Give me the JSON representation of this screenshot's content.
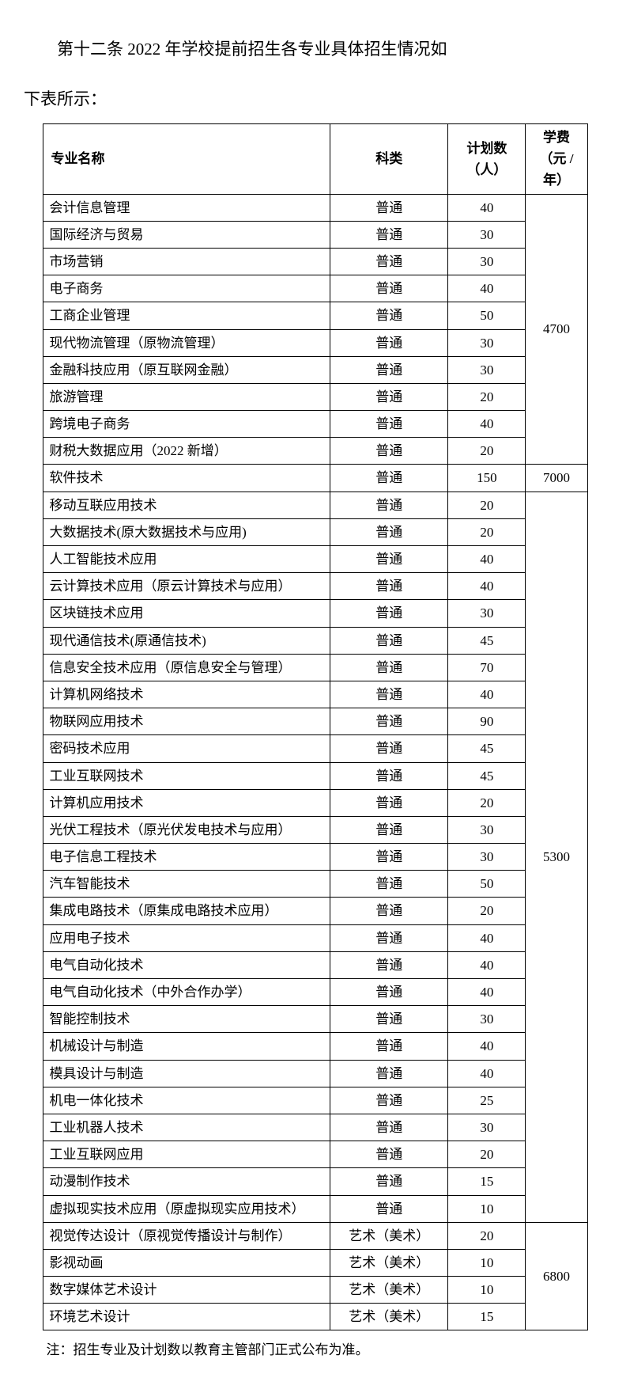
{
  "intro_line1": "第十二条 2022 年学校提前招生各专业具体招生情况如",
  "intro_line2": "下表所示：",
  "table": {
    "headers": {
      "major": "专业名称",
      "category": "科类",
      "plan": "计划数（人）",
      "fee": "学费（元 / 年）"
    },
    "groups": [
      {
        "fee": "4700",
        "rows": [
          {
            "major": "会计信息管理",
            "category": "普通",
            "plan": "40"
          },
          {
            "major": "国际经济与贸易",
            "category": "普通",
            "plan": "30"
          },
          {
            "major": "市场营销",
            "category": "普通",
            "plan": "30"
          },
          {
            "major": "电子商务",
            "category": "普通",
            "plan": "40"
          },
          {
            "major": "工商企业管理",
            "category": "普通",
            "plan": "50"
          },
          {
            "major": "现代物流管理（原物流管理）",
            "category": "普通",
            "plan": "30"
          },
          {
            "major": "金融科技应用（原互联网金融）",
            "category": "普通",
            "plan": "30"
          },
          {
            "major": "旅游管理",
            "category": "普通",
            "plan": "20"
          },
          {
            "major": "跨境电子商务",
            "category": "普通",
            "plan": "40"
          },
          {
            "major": "财税大数据应用（2022 新增）",
            "category": "普通",
            "plan": "20"
          }
        ]
      },
      {
        "fee": "7000",
        "rows": [
          {
            "major": "软件技术",
            "category": "普通",
            "plan": "150"
          }
        ]
      },
      {
        "fee": "5300",
        "rows": [
          {
            "major": "移动互联应用技术",
            "category": "普通",
            "plan": "20"
          },
          {
            "major": "大数据技术(原大数据技术与应用)",
            "category": "普通",
            "plan": "20"
          },
          {
            "major": "人工智能技术应用",
            "category": "普通",
            "plan": "40"
          },
          {
            "major": "云计算技术应用（原云计算技术与应用）",
            "category": "普通",
            "plan": "40"
          },
          {
            "major": "区块链技术应用",
            "category": "普通",
            "plan": "30"
          },
          {
            "major": "现代通信技术(原通信技术)",
            "category": "普通",
            "plan": "45"
          },
          {
            "major": "信息安全技术应用（原信息安全与管理）",
            "category": "普通",
            "plan": "70"
          },
          {
            "major": "计算机网络技术",
            "category": "普通",
            "plan": "40"
          },
          {
            "major": "物联网应用技术",
            "category": "普通",
            "plan": "90"
          },
          {
            "major": "密码技术应用",
            "category": "普通",
            "plan": "45"
          },
          {
            "major": "工业互联网技术",
            "category": "普通",
            "plan": "45"
          },
          {
            "major": "计算机应用技术",
            "category": "普通",
            "plan": "20"
          },
          {
            "major": "光伏工程技术（原光伏发电技术与应用）",
            "category": "普通",
            "plan": "30"
          },
          {
            "major": "电子信息工程技术",
            "category": "普通",
            "plan": "30"
          },
          {
            "major": "汽车智能技术",
            "category": "普通",
            "plan": "50"
          },
          {
            "major": "集成电路技术（原集成电路技术应用）",
            "category": "普通",
            "plan": "20"
          },
          {
            "major": "应用电子技术",
            "category": "普通",
            "plan": "40"
          },
          {
            "major": "电气自动化技术",
            "category": "普通",
            "plan": "40"
          },
          {
            "major": "电气自动化技术（中外合作办学）",
            "category": "普通",
            "plan": "40"
          },
          {
            "major": "智能控制技术",
            "category": "普通",
            "plan": "30"
          },
          {
            "major": "机械设计与制造",
            "category": "普通",
            "plan": "40"
          },
          {
            "major": "模具设计与制造",
            "category": "普通",
            "plan": "40"
          },
          {
            "major": "机电一体化技术",
            "category": "普通",
            "plan": "25"
          },
          {
            "major": "工业机器人技术",
            "category": "普通",
            "plan": "30"
          },
          {
            "major": "工业互联网应用",
            "category": "普通",
            "plan": "20"
          },
          {
            "major": "动漫制作技术",
            "category": "普通",
            "plan": "15"
          },
          {
            "major": "虚拟现实技术应用（原虚拟现实应用技术）",
            "category": "普通",
            "plan": "10"
          }
        ]
      },
      {
        "fee": "6800",
        "rows": [
          {
            "major": "视觉传达设计（原视觉传播设计与制作）",
            "category": "艺术（美术）",
            "plan": "20"
          },
          {
            "major": "影视动画",
            "category": "艺术（美术）",
            "plan": "10"
          },
          {
            "major": "数字媒体艺术设计",
            "category": "艺术（美术）",
            "plan": "10"
          },
          {
            "major": "环境艺术设计",
            "category": "艺术（美术）",
            "plan": "15"
          }
        ]
      }
    ]
  },
  "footnote": "注：招生专业及计划数以教育主管部门正式公布为准。"
}
